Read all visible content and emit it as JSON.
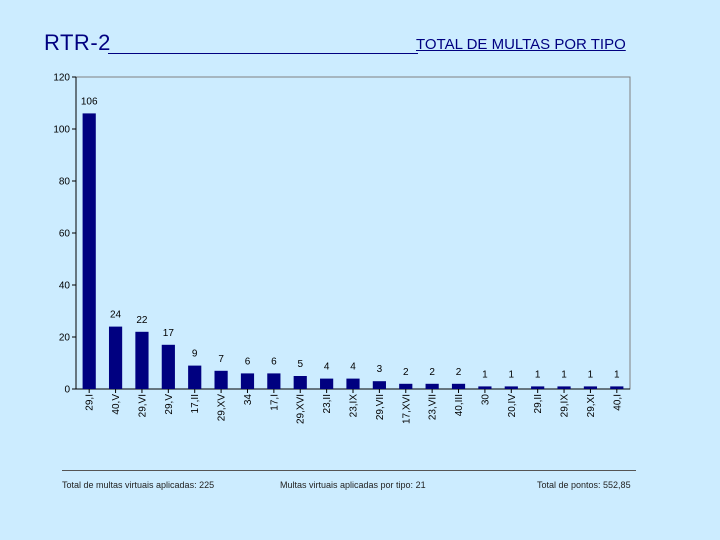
{
  "header": {
    "left_title": "RTR-2",
    "chart_title": "TOTAL DE MULTAS POR TIPO"
  },
  "colors": {
    "background": "#ccecff",
    "bar_fill": "#000080",
    "plot_background": "#ccecff",
    "title_color": "#000080"
  },
  "chart_data": {
    "type": "bar",
    "title": "TOTAL DE MULTAS POR TIPO",
    "xlabel": "",
    "ylabel": "",
    "ylim": [
      0,
      120
    ],
    "yticks": [
      0,
      20,
      40,
      60,
      80,
      100,
      120
    ],
    "grid": false,
    "categories": [
      "29,I",
      "40,V",
      "29,VI",
      "29,V",
      "17,II",
      "29,XV",
      "34",
      "17,I",
      "29,XVI",
      "23,II",
      "23,IX",
      "29,VII",
      "17,XVI",
      "23,VII",
      "40,III",
      "30",
      "20,IV",
      "29,II",
      "29,IX",
      "29,XI",
      "40,I"
    ],
    "values": [
      106,
      24,
      22,
      17,
      9,
      7,
      6,
      6,
      5,
      4,
      4,
      3,
      2,
      2,
      2,
      1,
      1,
      1,
      1,
      1,
      1
    ]
  },
  "footer": {
    "total_multas": "Total de multas virtuais aplicadas: 225",
    "multas_por_tipo": "Multas virtuais aplicadas por tipo: 21",
    "total_pontos": "Total de pontos: 552,85"
  }
}
